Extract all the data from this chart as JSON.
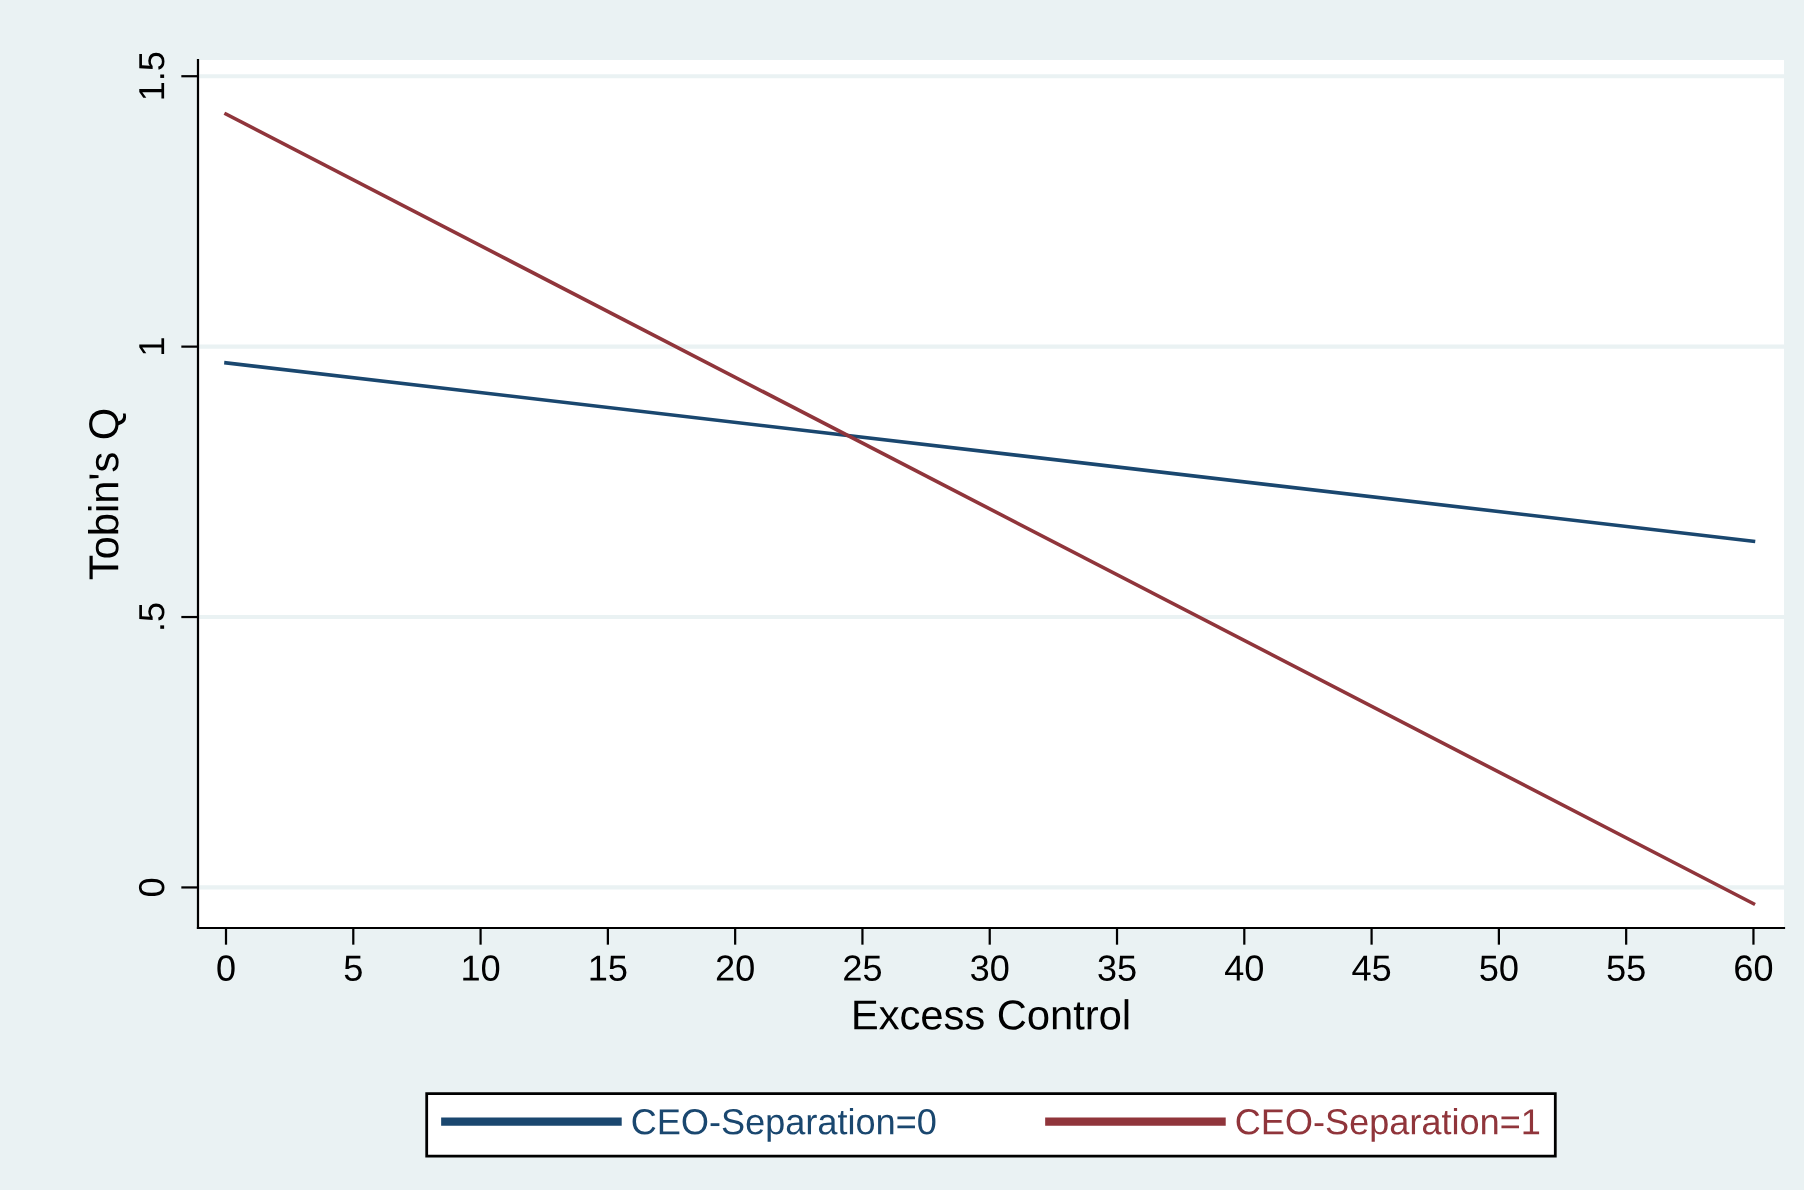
{
  "chart_data": {
    "type": "line",
    "xlabel": "Excess Control",
    "ylabel": "Tobin's Q",
    "x": [
      0,
      60
    ],
    "series": [
      {
        "name": "CEO-Separation=0",
        "color": "#1a476f",
        "values": [
          0.97,
          0.64
        ]
      },
      {
        "name": "CEO-Separation=1",
        "color": "#90353b",
        "values": [
          1.43,
          -0.03
        ]
      }
    ],
    "xlim": [
      -1.1,
      61.2
    ],
    "ylim": [
      -0.075,
      1.53
    ],
    "xticks": [
      0,
      5,
      10,
      15,
      20,
      25,
      30,
      35,
      40,
      45,
      50,
      55,
      60
    ],
    "yticks": [
      {
        "value": 0,
        "label": "0"
      },
      {
        "value": 0.5,
        "label": ".5"
      },
      {
        "value": 1,
        "label": "1"
      },
      {
        "value": 1.5,
        "label": "1.5"
      }
    ],
    "grid": "y",
    "legend": "bottom",
    "line_style": "solid",
    "marker": "none"
  }
}
